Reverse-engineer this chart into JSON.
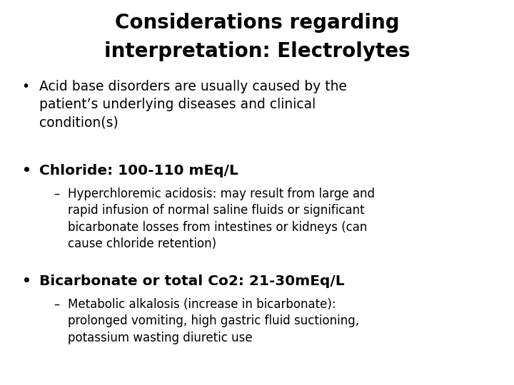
{
  "title_line1": "Considerations regarding",
  "title_line2": "interpretation: Electrolytes",
  "background_color": "#ffffff",
  "text_color": "#000000",
  "title_fontsize": 20,
  "body_fontsize": 13.5,
  "sub_fontsize": 12,
  "bullet1": "Acid base disorders are usually caused by the\npatient’s underlying diseases and clinical\ncondition(s)",
  "bullet2_bold": "Chloride: 100-110 mEq/L",
  "sub_bullet1": "Hyperchloremic acidosis: may result from large and\nrapid infusion of normal saline fluids or significant\nbicarbonate losses from intestines or kidneys (can\ncause chloride retention)",
  "bullet3_bold": "Bicarbonate or total Co2: 21-30mEq/L",
  "sub_bullet2": "Metabolic alkalosis (increase in bicarbonate):\nprolonged vomiting, high gastric fluid suctioning,\npotassium wasting diuretic use"
}
